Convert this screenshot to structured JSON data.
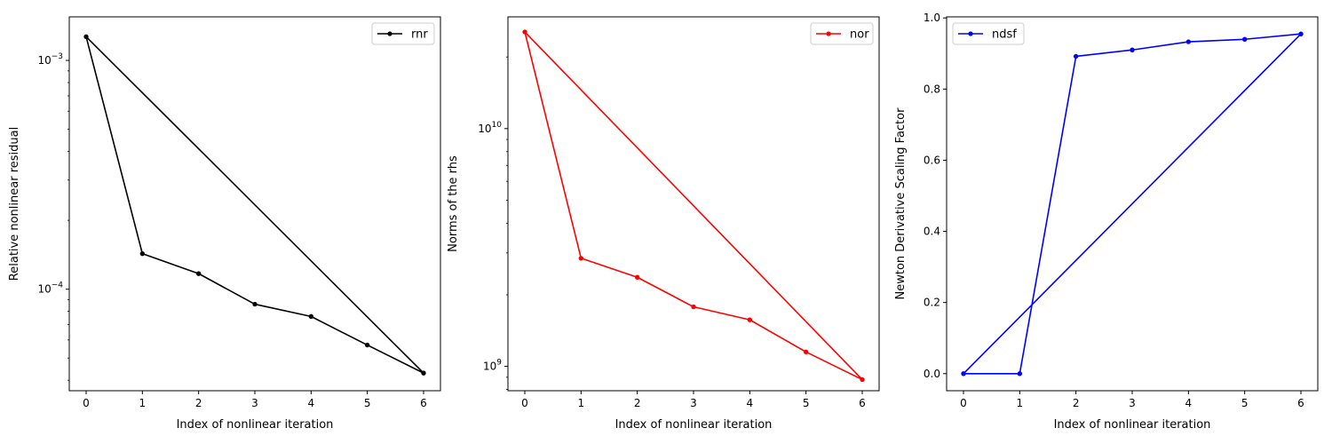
{
  "chart_data": [
    {
      "type": "line",
      "xlabel": "Index of nonlinear iteration",
      "ylabel": "Relative nonlinear residual",
      "yscale": "log",
      "xlim": [
        -0.3,
        6.3
      ],
      "ylim": [
        3.6e-05,
        0.00155
      ],
      "xticks": [
        0,
        1,
        2,
        3,
        4,
        5,
        6
      ],
      "yticks": [
        {
          "value": 0.001,
          "base": "10",
          "exp": "−3"
        },
        {
          "value": 0.0001,
          "base": "10",
          "exp": "−4"
        }
      ],
      "legend": "top-right",
      "series": [
        {
          "name": "rnr",
          "color": "#000000",
          "x": [
            0,
            1,
            2,
            3,
            4,
            5,
            6,
            0,
            1,
            2,
            3,
            4,
            5,
            6
          ],
          "y": [
            0.00127,
            0.000143,
            0.000117,
            8.6e-05,
            7.6e-05,
            5.7e-05,
            4.3e-05,
            0.00127,
            0.000143,
            0.000117,
            8.6e-05,
            7.6e-05,
            5.7e-05,
            4.3e-05
          ]
        }
      ]
    },
    {
      "type": "line",
      "xlabel": "Index of nonlinear iteration",
      "ylabel": "Norms of the rhs",
      "yscale": "log",
      "xlim": [
        -0.3,
        6.3
      ],
      "ylim": [
        790000000.0,
        29500000000.0
      ],
      "xticks": [
        0,
        1,
        2,
        3,
        4,
        5,
        6
      ],
      "yticks": [
        {
          "value": 10000000000,
          "base": "10",
          "exp": "10"
        },
        {
          "value": 1000000000,
          "base": "10",
          "exp": "9"
        }
      ],
      "legend": "top-right",
      "series": [
        {
          "name": "nor",
          "color": "#ff0000",
          "x": [
            0,
            1,
            2,
            3,
            4,
            5,
            6,
            0,
            1,
            2,
            3,
            4,
            5,
            6
          ],
          "y": [
            25500000000,
            2850000000,
            2370000000,
            1780000000,
            1570000000,
            1150000000,
            880000000,
            25500000000,
            2850000000,
            2370000000,
            1780000000,
            1570000000,
            1150000000,
            880000000
          ]
        }
      ]
    },
    {
      "type": "line",
      "xlabel": "Index of nonlinear iteration",
      "ylabel": "Newton Derivative Scaling Factor",
      "yscale": "linear",
      "xlim": [
        -0.3,
        6.3
      ],
      "ylim": [
        -0.048,
        1.003
      ],
      "xticks": [
        0,
        1,
        2,
        3,
        4,
        5,
        6
      ],
      "yticks": [
        {
          "value": 0.0,
          "label": "0.0"
        },
        {
          "value": 0.2,
          "label": "0.2"
        },
        {
          "value": 0.4,
          "label": "0.4"
        },
        {
          "value": 0.6,
          "label": "0.6"
        },
        {
          "value": 0.8,
          "label": "0.8"
        },
        {
          "value": 1.0,
          "label": "1.0"
        }
      ],
      "legend": "top-left",
      "series": [
        {
          "name": "ndsf",
          "color": "#0000ff",
          "x": [
            0,
            1,
            2,
            3,
            4,
            5,
            6,
            0,
            1,
            2,
            3,
            4,
            5,
            6
          ],
          "y": [
            0.0,
            0.0,
            0.892,
            0.91,
            0.933,
            0.94,
            0.955,
            0.0,
            0.0,
            0.892,
            0.91,
            0.933,
            0.94,
            0.955
          ]
        }
      ]
    }
  ]
}
